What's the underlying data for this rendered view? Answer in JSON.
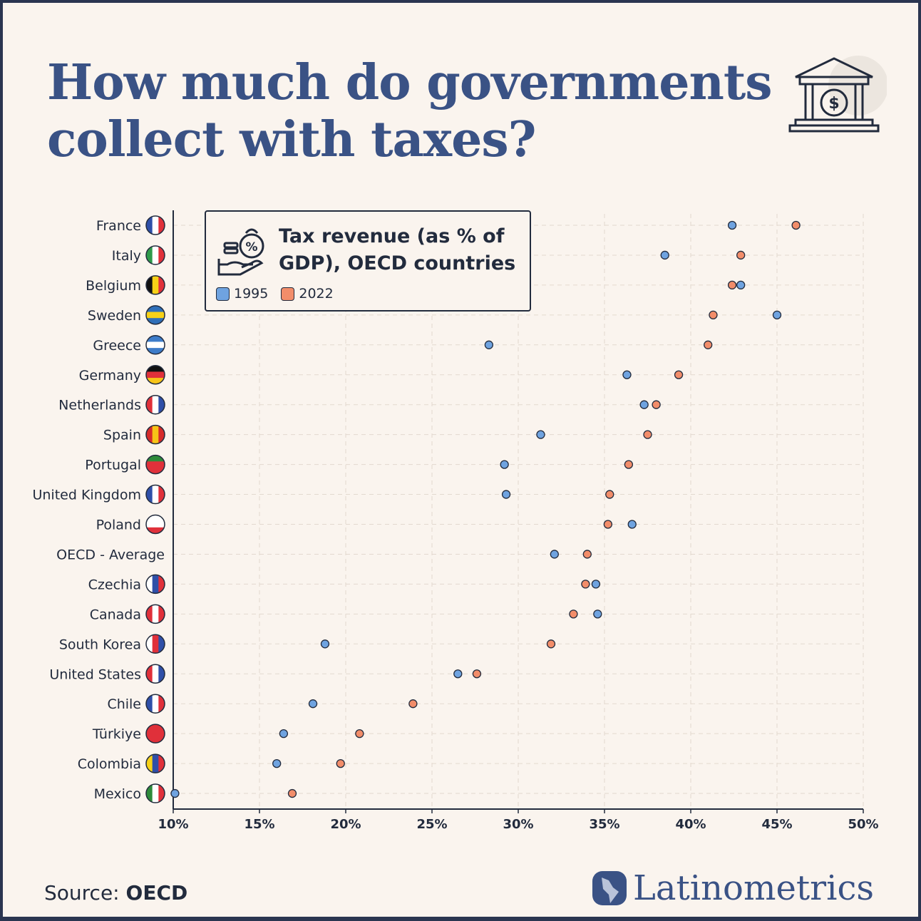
{
  "title_line1": "How much do governments",
  "title_line2": "collect with taxes?",
  "source_label": "Source:",
  "source_value": "OECD",
  "brand": "Latinometrics",
  "colors": {
    "accent": "#3a5285",
    "series_1995": "#6fa3e0",
    "series_2022": "#f28d6a",
    "background": "#faf4ee",
    "ink": "#222b3d"
  },
  "chart_data": {
    "type": "scatter",
    "orientation": "horizontal dot plot",
    "title": "Tax revenue (as % of GDP), OECD countries",
    "xlim": [
      10,
      50
    ],
    "x_ticks": [
      "10%",
      "15%",
      "20%",
      "25%",
      "30%",
      "35%",
      "40%",
      "45%",
      "50%"
    ],
    "x_tick_values": [
      10,
      15,
      20,
      25,
      30,
      35,
      40,
      45,
      50
    ],
    "grid": true,
    "legend_placement": "top-left",
    "categories": [
      "France",
      "Italy",
      "Belgium",
      "Sweden",
      "Greece",
      "Germany",
      "Netherlands",
      "Spain",
      "Portugal",
      "United Kingdom",
      "Poland",
      "OECD - Average",
      "Czechia",
      "Canada",
      "South Korea",
      "United States",
      "Chile",
      "Türkiye",
      "Colombia",
      "Mexico"
    ],
    "flags": [
      [
        "#2f4fa8",
        "#ffffff",
        "#e0303a"
      ],
      [
        "#2e9a4a",
        "#ffffff",
        "#e0303a"
      ],
      [
        "#111111",
        "#f7d117",
        "#e0303a"
      ],
      [
        "#2f6fb8",
        "#f7d117",
        "#2f6fb8"
      ],
      [
        "#3d7cc9",
        "#ffffff",
        "#3d7cc9"
      ],
      [
        "#111111",
        "#e0303a",
        "#f7c417"
      ],
      [
        "#e0303a",
        "#ffffff",
        "#2f4fa8"
      ],
      [
        "#d62a2a",
        "#f7c417",
        "#d62a2a"
      ],
      [
        "#2e8a3a",
        "#e0303a",
        "#e0303a"
      ],
      [
        "#2f4fa8",
        "#ffffff",
        "#e0303a"
      ],
      [
        "#ffffff",
        "#ffffff",
        "#e0303a"
      ],
      null,
      [
        "#ffffff",
        "#2f4fa8",
        "#e0303a"
      ],
      [
        "#e0303a",
        "#ffffff",
        "#e0303a"
      ],
      [
        "#ffffff",
        "#e0303a",
        "#2f4fa8"
      ],
      [
        "#e0303a",
        "#ffffff",
        "#2f4fa8"
      ],
      [
        "#2f4fa8",
        "#ffffff",
        "#e0303a"
      ],
      [
        "#e0303a",
        "#e0303a",
        "#e0303a"
      ],
      [
        "#f7d117",
        "#2f4fa8",
        "#e0303a"
      ],
      [
        "#2e8a3a",
        "#ffffff",
        "#e0303a"
      ]
    ],
    "series": [
      {
        "name": "1995",
        "color": "#6fa3e0",
        "values": [
          42.4,
          38.5,
          42.9,
          45.0,
          28.3,
          36.3,
          37.3,
          31.3,
          29.2,
          29.3,
          36.6,
          32.1,
          34.5,
          34.6,
          18.8,
          26.5,
          18.1,
          16.4,
          16.0,
          10.1
        ]
      },
      {
        "name": "2022",
        "color": "#f28d6a",
        "values": [
          46.1,
          42.9,
          42.4,
          41.3,
          41.0,
          39.3,
          38.0,
          37.5,
          36.4,
          35.3,
          35.2,
          34.0,
          33.9,
          33.2,
          31.9,
          27.6,
          23.9,
          20.8,
          19.7,
          16.9
        ]
      }
    ]
  }
}
